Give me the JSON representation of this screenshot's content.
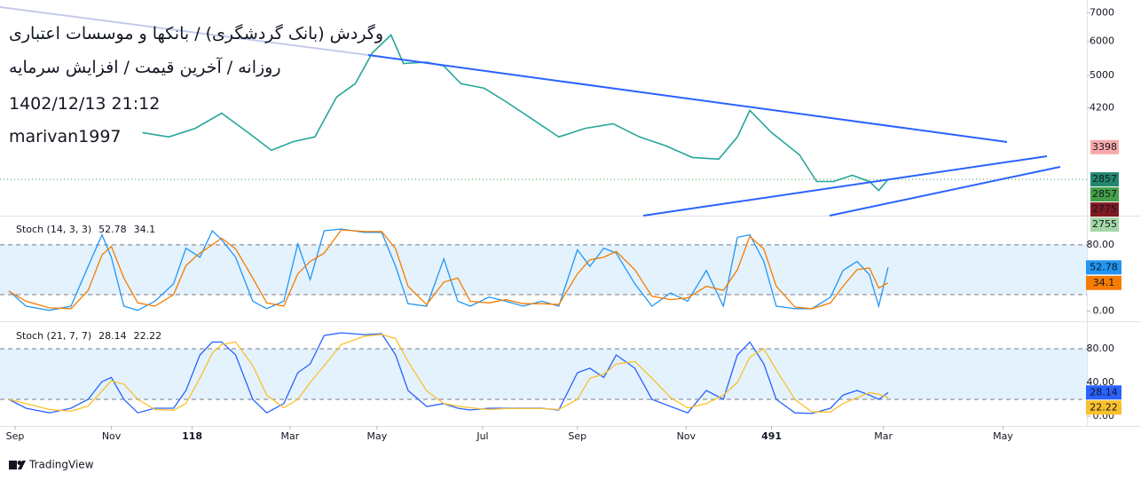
{
  "chart_data": [
    {
      "type": "line",
      "title": "وگردش (بانک گردشگری) / بانکها و موسسات اعتباری",
      "subtitle": "روزانه / آخرین قیمت / افزایش سرمایه",
      "annotations": [
        "1402/12/13 21:12",
        "marivan1997"
      ],
      "log": true,
      "ylim": [
        2350,
        7500
      ],
      "yticks": [
        7000,
        6000,
        5000,
        4200
      ],
      "xlim": [
        0,
        694
      ],
      "color": "#26a69a",
      "x": [
        86,
        103,
        120,
        137,
        154,
        169,
        183,
        197,
        211,
        223,
        234,
        246,
        254,
        269,
        280,
        291,
        306,
        320,
        337,
        354,
        371,
        389,
        406,
        423,
        440,
        457,
        469,
        477,
        491,
        509,
        520,
        531,
        543,
        554,
        560,
        566
      ],
      "values": [
        3675,
        3590,
        3760,
        4080,
        3675,
        3340,
        3500,
        3590,
        4450,
        4780,
        5645,
        6215,
        5330,
        5370,
        5260,
        4780,
        4665,
        4340,
        3950,
        3590,
        3760,
        3855,
        3590,
        3420,
        3215,
        3185,
        3590,
        4140,
        3675,
        3260,
        2825,
        2825,
        2920,
        2825,
        2690,
        2855
      ],
      "price_labels": [
        {
          "value": 3398,
          "color": "#f7a9a8"
        },
        {
          "value": 2857,
          "color": "#22886b"
        },
        {
          "value": 2857,
          "color": "#43a047"
        },
        {
          "value": 2775,
          "color": "#801922"
        },
        {
          "value": 2755,
          "color": "#a5d6a7"
        }
      ]
    },
    {
      "type": "line",
      "title": "Stoch (14, 3, 3)",
      "ylim": [
        -10,
        113
      ],
      "xlim": [
        0,
        694
      ],
      "yticks": [
        {
          "value": 80,
          "label": "80.00"
        },
        {
          "value": 0,
          "label": "0.00"
        }
      ],
      "bands": [
        20,
        80
      ],
      "band_color": "#e3f2fd",
      "x": [
        0,
        11,
        26,
        40,
        51,
        60,
        66,
        74,
        83,
        94,
        106,
        114,
        123,
        131,
        137,
        146,
        157,
        166,
        177,
        186,
        194,
        203,
        214,
        229,
        240,
        249,
        257,
        269,
        280,
        289,
        297,
        309,
        320,
        331,
        343,
        354,
        366,
        374,
        383,
        391,
        403,
        414,
        426,
        437,
        449,
        460,
        469,
        477,
        486,
        494,
        506,
        517,
        529,
        537,
        546,
        554,
        560,
        566
      ],
      "series": [
        {
          "color": "#2196f3",
          "values": [
            24.5,
            6,
            1,
            6,
            54,
            92,
            65,
            6,
            1,
            12,
            33,
            76,
            65,
            97,
            86,
            65,
            12,
            3,
            12,
            81,
            38,
            97,
            99,
            95,
            95,
            54,
            9,
            6,
            63,
            12,
            6,
            17,
            12,
            6,
            12,
            6,
            74,
            54,
            76,
            70,
            33,
            6,
            22,
            12,
            49,
            6,
            89,
            92,
            60,
            6,
            3,
            3,
            17,
            49,
            60,
            44,
            6,
            52.78
          ]
        },
        {
          "color": "#f57c00",
          "values": [
            24,
            12,
            4,
            3,
            25,
            68,
            78,
            40,
            10,
            6,
            20,
            55,
            70,
            80,
            88,
            75,
            40,
            10,
            6,
            45,
            60,
            70,
            98,
            96,
            96,
            75,
            30,
            8,
            35,
            40,
            12,
            10,
            14,
            9,
            9,
            8,
            45,
            62,
            65,
            72,
            50,
            18,
            14,
            16,
            30,
            25,
            50,
            90,
            75,
            30,
            5,
            3,
            10,
            30,
            50,
            52,
            28,
            34.1
          ]
        }
      ]
    },
    {
      "type": "line",
      "title": "Stoch (21, 7, 7)",
      "ylim": [
        -9.5,
        109.5
      ],
      "xlim": [
        0,
        694
      ],
      "yticks": [
        {
          "value": 80,
          "label": "80.00"
        },
        {
          "value": 40,
          "label": "40.00"
        },
        {
          "value": 0,
          "label": "0.00"
        }
      ],
      "bands": [
        20,
        80
      ],
      "band_color": "#e3f2fd",
      "xticks": [
        {
          "value": 4,
          "label": "Sep"
        },
        {
          "value": 66,
          "label": "Nov"
        },
        118,
        {
          "value": 181,
          "label": "Mar"
        },
        {
          "value": 237,
          "label": "May"
        },
        {
          "value": 305,
          "label": "Jul"
        },
        {
          "value": 366,
          "label": "Sep"
        },
        {
          "value": 436,
          "label": "Nov"
        },
        491,
        {
          "value": 563,
          "label": "Mar"
        },
        {
          "value": 640,
          "label": "May"
        }
      ],
      "x": [
        0,
        11,
        26,
        40,
        51,
        60,
        66,
        74,
        83,
        94,
        106,
        114,
        123,
        131,
        137,
        146,
        157,
        166,
        177,
        186,
        194,
        203,
        214,
        229,
        240,
        249,
        257,
        269,
        280,
        289,
        297,
        309,
        320,
        331,
        343,
        354,
        366,
        374,
        383,
        391,
        403,
        414,
        426,
        437,
        449,
        460,
        469,
        477,
        486,
        494,
        506,
        517,
        529,
        537,
        546,
        554,
        560,
        566
      ],
      "series": [
        {
          "color": "#2962ff",
          "values": [
            20,
            9.5,
            4,
            9.5,
            20,
            41,
            46,
            20,
            4,
            9.5,
            9.5,
            30.5,
            72.6,
            88,
            88,
            72.6,
            20,
            4,
            15,
            51.6,
            62,
            95.8,
            99,
            96.8,
            97.9,
            72.6,
            30.5,
            11.6,
            15,
            9.5,
            7.4,
            9.5,
            9.5,
            9.5,
            9.5,
            7.4,
            51.6,
            57,
            46,
            72.6,
            57,
            20,
            11.6,
            4,
            30.5,
            20,
            72.6,
            88,
            62,
            20,
            4,
            3.2,
            9.5,
            25,
            30.5,
            25,
            20,
            28.14
          ]
        },
        {
          "color": "#fbc02d",
          "values": [
            20,
            15,
            8,
            6,
            12,
            30,
            42,
            38,
            20,
            8,
            7,
            15,
            45,
            75,
            85,
            88,
            60,
            25,
            10,
            20,
            40,
            60,
            85,
            95,
            97,
            92,
            65,
            30,
            15,
            12,
            10,
            8,
            9,
            9,
            9,
            8,
            20,
            45,
            50,
            62,
            65,
            45,
            22,
            10,
            15,
            25,
            40,
            70,
            80,
            55,
            20,
            5,
            5,
            15,
            22,
            28,
            26,
            22.22
          ]
        }
      ]
    }
  ],
  "footer": {
    "brand": "TradingView"
  }
}
